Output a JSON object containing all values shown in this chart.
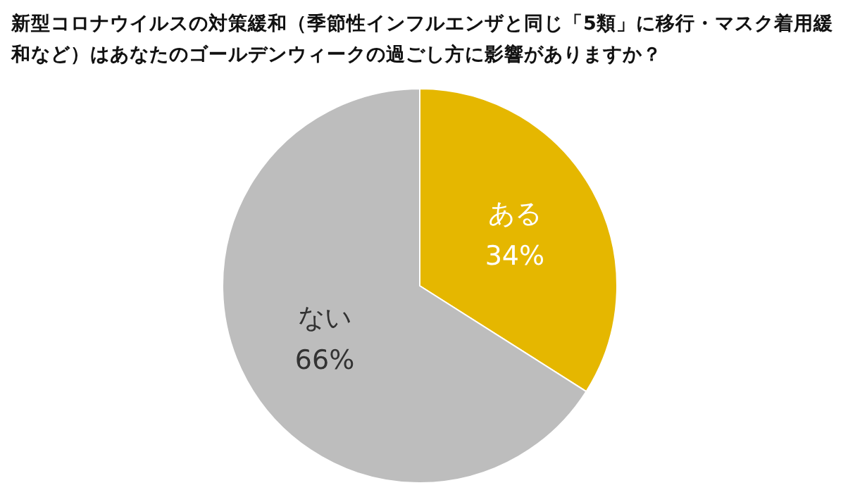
{
  "chart_data": {
    "type": "pie",
    "title": "新型コロナウイルスの対策緩和（季節性インフルエンザと同じ「5類」に移行・マスク着用緩和など）はあなたのゴールデンウィークの過ごし方に影響がありますか？",
    "categories": [
      "ある",
      "ない"
    ],
    "values": [
      34,
      66
    ],
    "value_labels": [
      "34%",
      "66%"
    ],
    "colors": [
      "#e5b700",
      "#bdbdbd"
    ]
  }
}
